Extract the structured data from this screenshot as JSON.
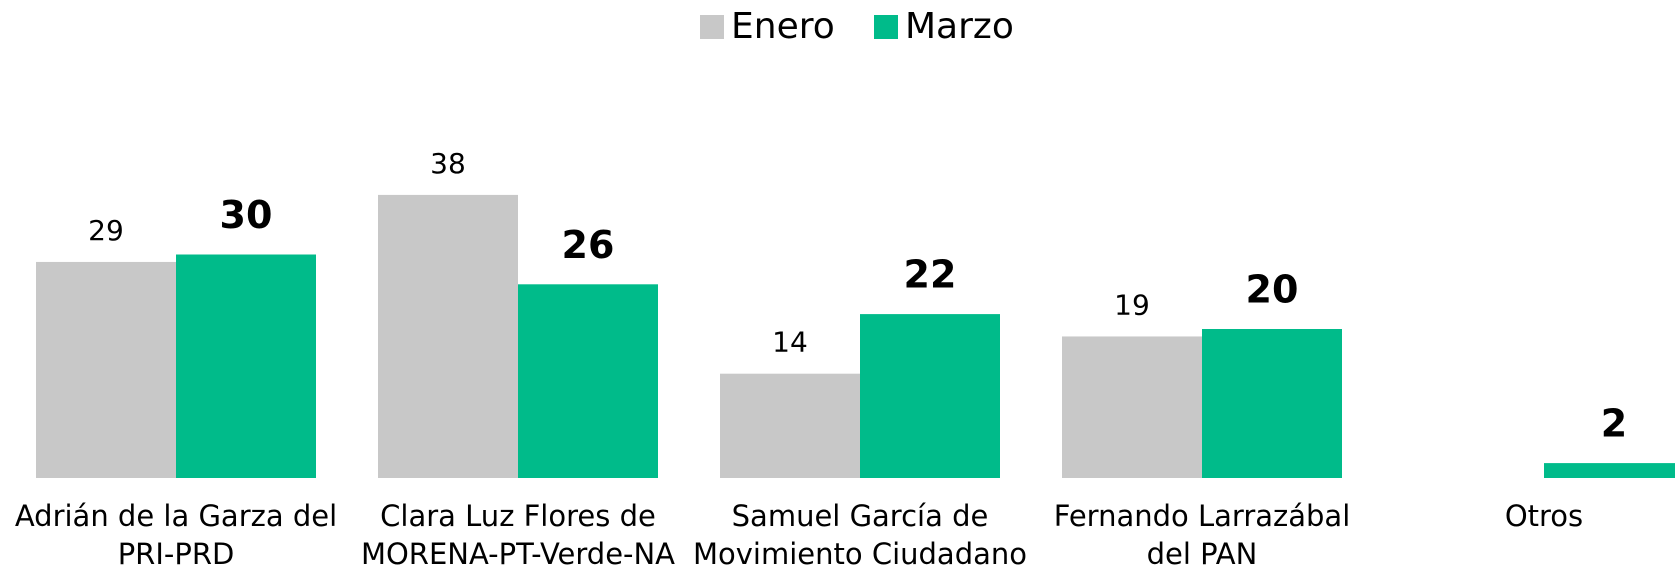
{
  "chart_data": {
    "type": "bar",
    "categories": [
      [
        "Adrián de la Garza del",
        "PRI-PRD"
      ],
      [
        "Clara Luz Flores de",
        "MORENA-PT-Verde-NA"
      ],
      [
        "Samuel García de",
        "Movimiento Ciudadano"
      ],
      [
        "Fernando Larrazábal",
        "del PAN"
      ],
      [
        "Otros"
      ]
    ],
    "series": [
      {
        "name": "Enero",
        "color": "#c8c8c8",
        "values": [
          29,
          38,
          14,
          19,
          null
        ]
      },
      {
        "name": "Marzo",
        "color": "#00bb8a",
        "values": [
          30,
          26,
          22,
          20,
          2
        ]
      }
    ],
    "ylim": [
      0,
      40
    ]
  }
}
